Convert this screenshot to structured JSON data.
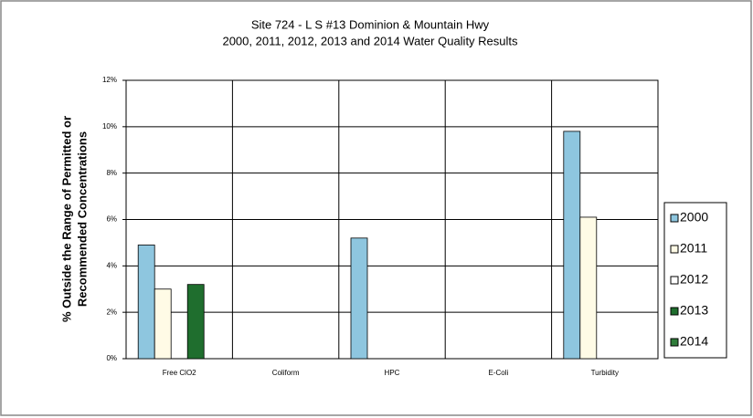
{
  "chart_data": {
    "type": "bar",
    "title": [
      "Site 724 - L S #13 Dominion & Mountain Hwy",
      "2000, 2011, 2012, 2013 and 2014 Water Quality Results"
    ],
    "y_label": [
      "% Outside the Range of Permitted or",
      "Recommended Concentrations"
    ],
    "categories": [
      "Free ClO2",
      "Coliform",
      "HPC",
      "E-Coli",
      "Turbidity"
    ],
    "series": [
      {
        "name": "2000",
        "color": "#8ec6df",
        "values": [
          4.9,
          0,
          5.2,
          0,
          9.8
        ]
      },
      {
        "name": "2011",
        "color": "#fffbe6",
        "values": [
          3.0,
          0,
          0,
          0,
          6.1
        ]
      },
      {
        "name": "2012",
        "color": "#ffffff",
        "values": [
          0,
          0,
          0,
          0,
          0
        ]
      },
      {
        "name": "2013",
        "color": "#1f6e2e",
        "values": [
          3.2,
          0,
          0,
          0,
          0
        ]
      },
      {
        "name": "2014",
        "color": "#2f7d3a",
        "values": [
          0,
          0,
          0,
          0,
          0
        ]
      }
    ],
    "ylim": [
      0,
      12
    ],
    "yticks": [
      {
        "value": 0,
        "label": "0%"
      },
      {
        "value": 2,
        "label": "2%"
      },
      {
        "value": 4,
        "label": "4%"
      },
      {
        "value": 6,
        "label": "6%"
      },
      {
        "value": 8,
        "label": "8%"
      },
      {
        "value": 10,
        "label": "10%"
      },
      {
        "value": 12,
        "label": "12%"
      }
    ],
    "grid": true,
    "legend": "right"
  }
}
